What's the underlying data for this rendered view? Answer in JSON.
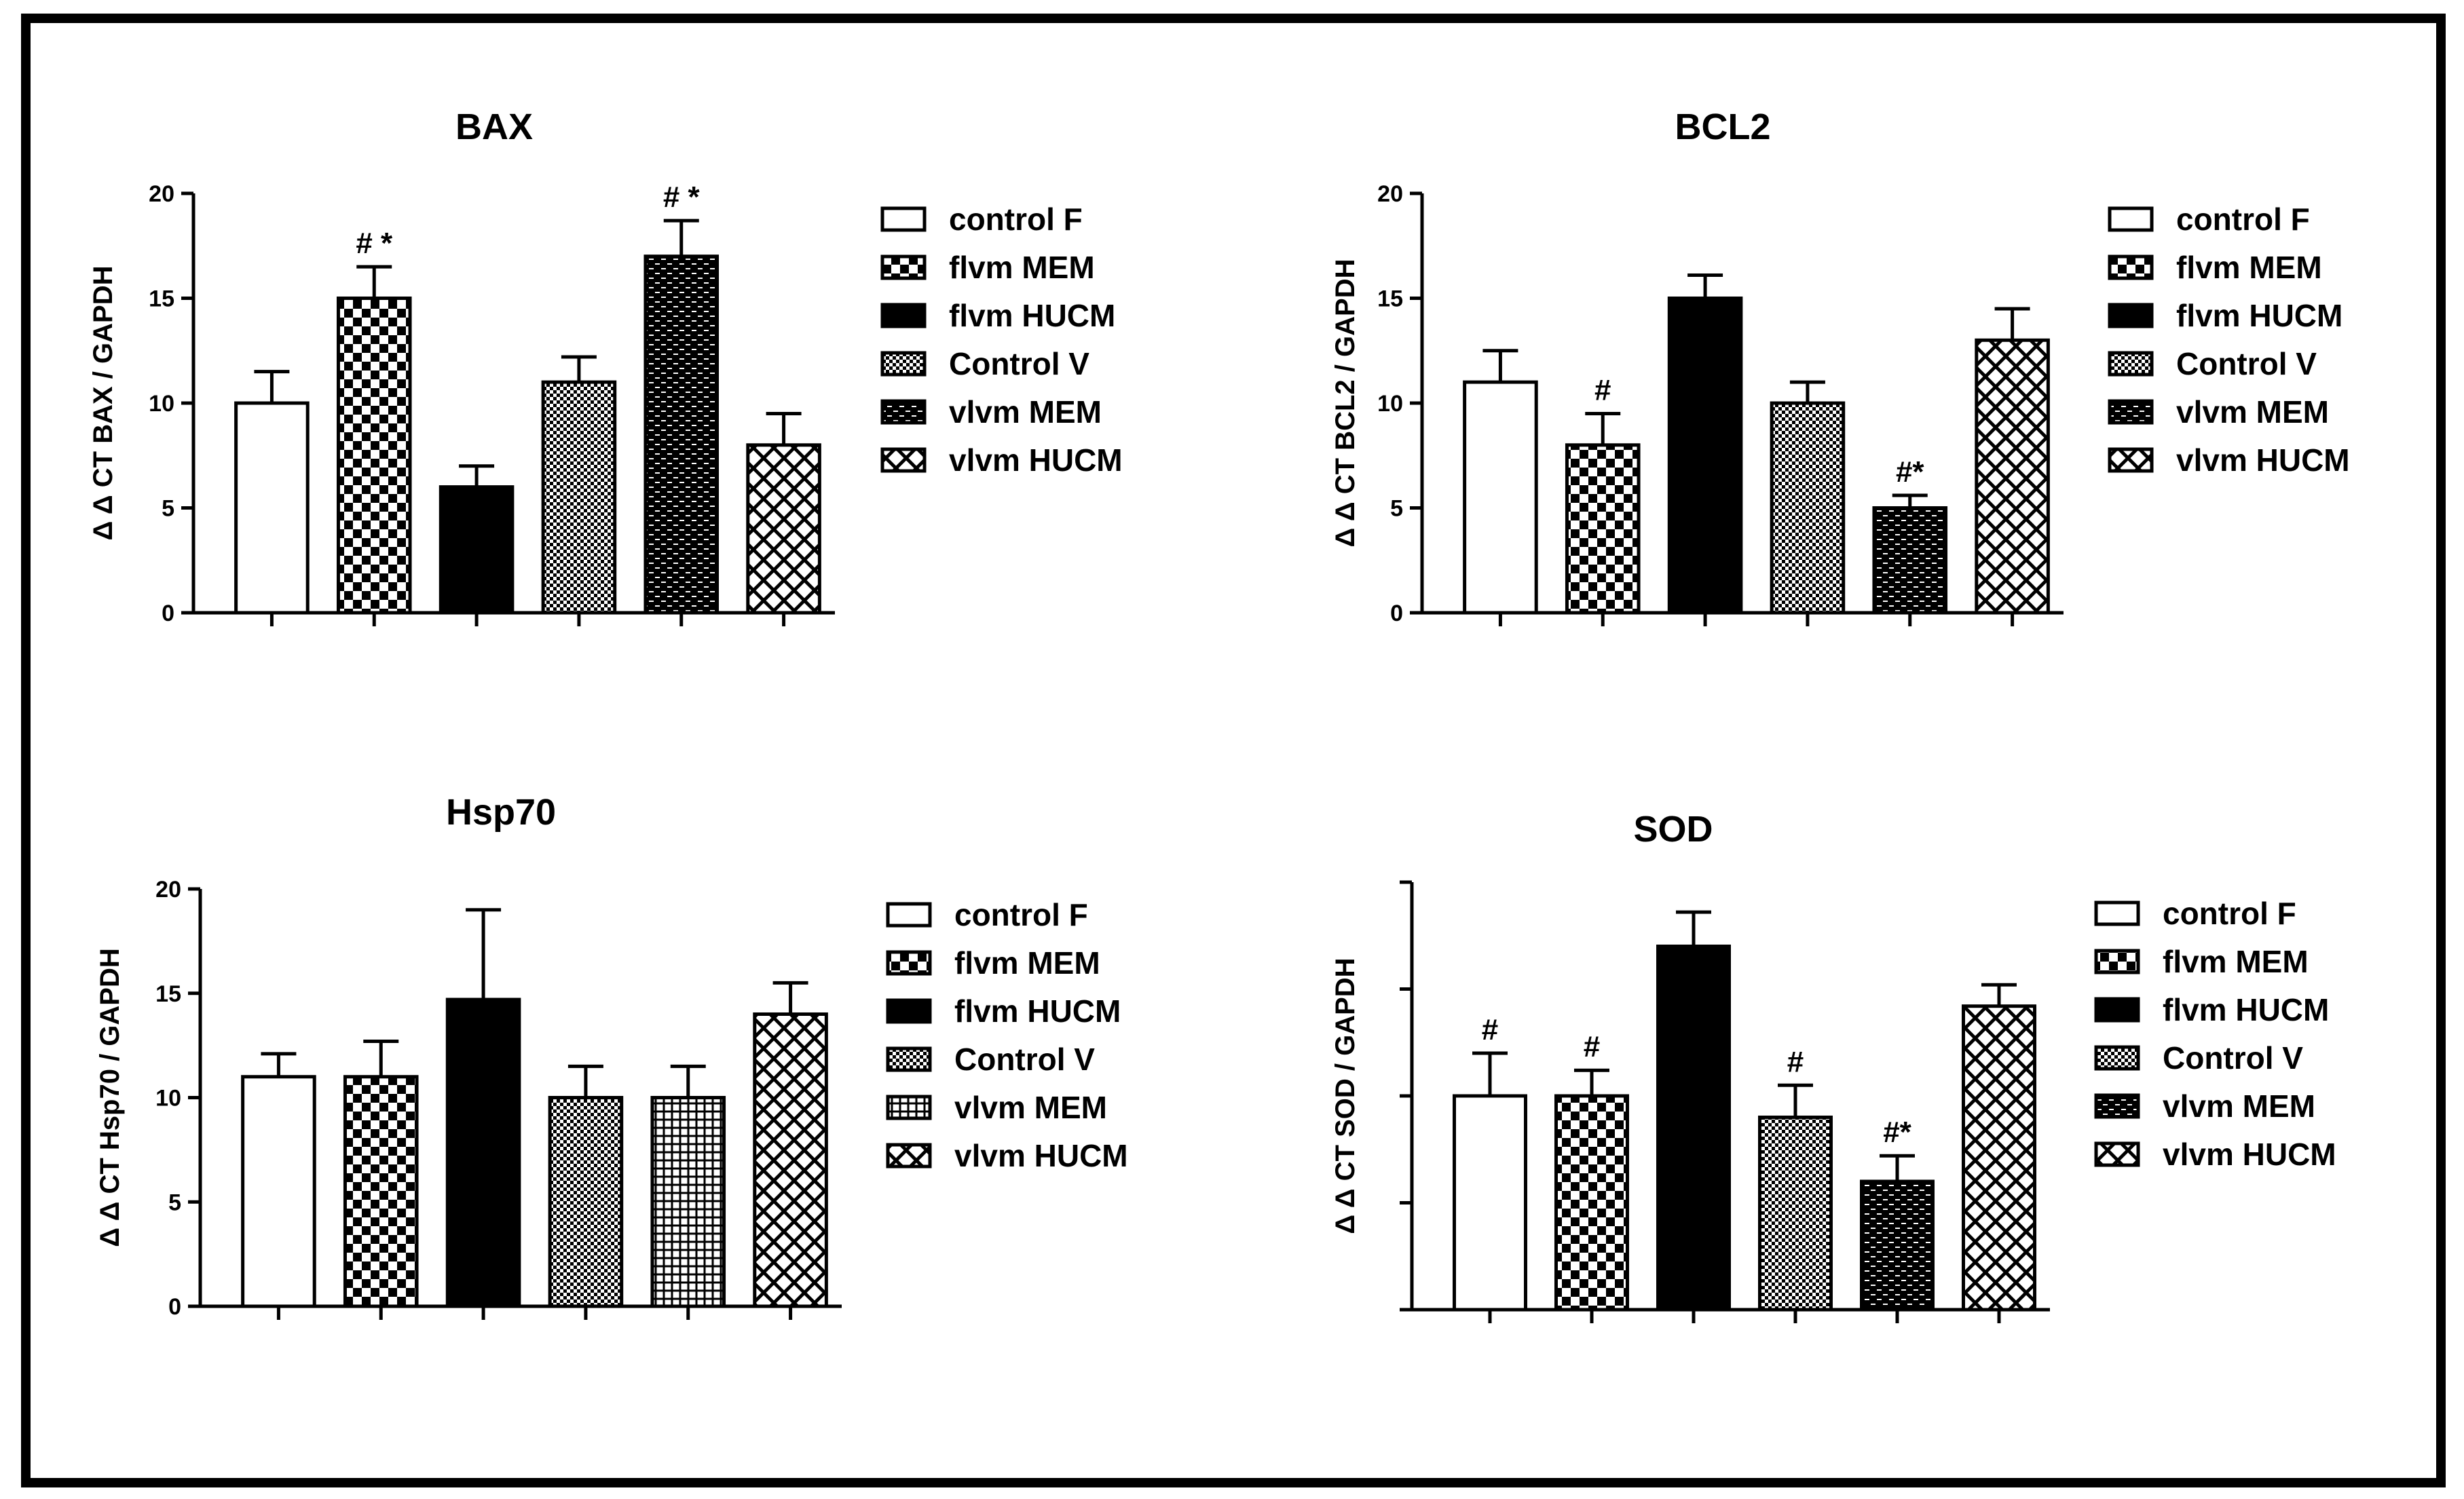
{
  "legend_series": [
    "control F",
    "flvm MEM",
    "flvm HUCM",
    "Control V",
    "vlvm MEM",
    "vlvm HUCM"
  ],
  "chart_data": [
    {
      "type": "bar",
      "title": "BAX",
      "ylabel": "Δ Δ CT BAX / GAPDH",
      "ylim": [
        0,
        20
      ],
      "yticks": [
        0,
        5,
        10,
        15,
        20
      ],
      "show_tick_labels": true,
      "categories": [
        "control F",
        "flvm MEM",
        "flvm HUCM",
        "Control V",
        "vlvm MEM",
        "vlvm HUCM"
      ],
      "values": [
        10,
        15,
        6,
        11,
        17,
        8
      ],
      "errors": [
        1.5,
        1.5,
        1,
        1.2,
        1.7,
        1.5
      ],
      "annotations": [
        "",
        "# *",
        "",
        "",
        "# *",
        ""
      ],
      "legend": [
        "control F",
        "flvm MEM",
        "flvm HUCM",
        "Control V",
        "vlvm MEM",
        "vlvm HUCM"
      ]
    },
    {
      "type": "bar",
      "title": "BCL2",
      "ylabel": "Δ Δ CT BCL2 / GAPDH",
      "ylim": [
        0,
        20
      ],
      "yticks": [
        0,
        5,
        10,
        15,
        20
      ],
      "show_tick_labels": true,
      "categories": [
        "control F",
        "flvm MEM",
        "flvm HUCM",
        "Control V",
        "vlvm MEM",
        "vlvm HUCM"
      ],
      "values": [
        11,
        8,
        15,
        10,
        5,
        13
      ],
      "errors": [
        1.5,
        1.5,
        1.1,
        1,
        0.6,
        1.5
      ],
      "annotations": [
        "",
        "#",
        "",
        "",
        "#*",
        ""
      ],
      "legend": [
        "control F",
        "flvm MEM",
        "flvm HUCM",
        "Control V",
        "vlvm MEM",
        "vlvm HUCM"
      ]
    },
    {
      "type": "bar",
      "title": "Hsp70",
      "ylabel": "Δ Δ CT Hsp70 / GAPDH",
      "ylim": [
        0,
        20
      ],
      "yticks": [
        0,
        5,
        10,
        15,
        20
      ],
      "show_tick_labels": true,
      "categories": [
        "control F",
        "flvm MEM",
        "flvm HUCM",
        "Control V",
        "vlvm MEM",
        "vlvm HUCM"
      ],
      "values": [
        11,
        11,
        14.7,
        10,
        10,
        14
      ],
      "errors": [
        1.1,
        1.7,
        4.3,
        1.5,
        1.5,
        1.5
      ],
      "annotations": [
        "",
        "",
        "",
        "",
        "",
        ""
      ],
      "legend": [
        "control F",
        "flvm MEM",
        "flvm HUCM",
        "Control V",
        "vlvm MEM",
        "vlvm HUCM"
      ]
    },
    {
      "type": "bar",
      "title": "SOD",
      "ylabel": "Δ Δ CT  SOD / GAPDH",
      "ylim": [
        0,
        20
      ],
      "yticks": [
        0,
        5,
        10,
        15,
        20
      ],
      "show_tick_labels": false,
      "categories": [
        "control F",
        "flvm MEM",
        "flvm HUCM",
        "Control V",
        "vlvm MEM",
        "vlvm HUCM"
      ],
      "values": [
        10,
        10,
        17,
        9,
        6,
        14.2
      ],
      "errors": [
        2,
        1.2,
        1.6,
        1.5,
        1.2,
        1
      ],
      "annotations": [
        "#",
        "#",
        "",
        "#",
        "#*",
        ""
      ],
      "legend": [
        "control F",
        "flvm MEM",
        "flvm HUCM",
        "Control V",
        "vlvm MEM",
        "vlvm HUCM"
      ]
    }
  ]
}
